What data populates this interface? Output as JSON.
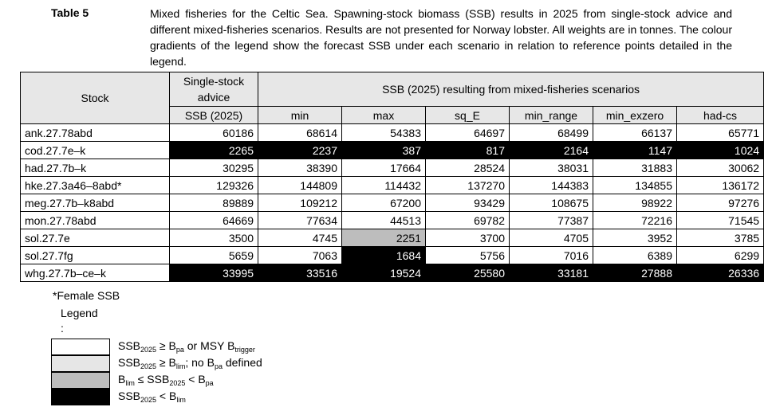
{
  "caption": {
    "label": "Table 5",
    "text": "Mixed fisheries for the Celtic Sea. Spawning-stock biomass (SSB) results in 2025 from single-stock advice and different mixed-fisheries scenarios. Results are not presented for Norway lobster. All weights are in tonnes. The colour gradients of the legend show the forecast SSB under each scenario in relation to reference points detailed in the legend."
  },
  "table": {
    "header": {
      "stock": "Stock",
      "single_stock_advice": "Single-stock advice",
      "scenarios": "SSB (2025) resulting from mixed-fisheries scenarios"
    },
    "columns": [
      "SSB (2025)",
      "min",
      "max",
      "sq_E",
      "min_range",
      "min_exzero",
      "had-cs"
    ],
    "rows": [
      {
        "stock": "ank.27.78abd",
        "values": [
          "60186",
          "68614",
          "54383",
          "64697",
          "68499",
          "66137",
          "65771"
        ],
        "shading": [
          "white",
          "white",
          "white",
          "white",
          "white",
          "white",
          "white"
        ]
      },
      {
        "stock": "cod.27.7e–k",
        "values": [
          "2265",
          "2237",
          "387",
          "817",
          "2164",
          "1147",
          "1024"
        ],
        "shading": [
          "black",
          "black",
          "black",
          "black",
          "black",
          "black",
          "black"
        ]
      },
      {
        "stock": "had.27.7b–k",
        "values": [
          "30295",
          "38390",
          "17664",
          "28524",
          "38031",
          "31883",
          "30062"
        ],
        "shading": [
          "white",
          "white",
          "white",
          "white",
          "white",
          "white",
          "white"
        ]
      },
      {
        "stock": "hke.27.3a46–8abd*",
        "values": [
          "129326",
          "144809",
          "114432",
          "137270",
          "144383",
          "134855",
          "136172"
        ],
        "shading": [
          "white",
          "white",
          "white",
          "white",
          "white",
          "white",
          "white"
        ]
      },
      {
        "stock": "meg.27.7b–k8abd",
        "values": [
          "89889",
          "109212",
          "67200",
          "93429",
          "108675",
          "98922",
          "97276"
        ],
        "shading": [
          "white",
          "white",
          "white",
          "white",
          "white",
          "white",
          "white"
        ]
      },
      {
        "stock": "mon.27.78abd",
        "values": [
          "64669",
          "77634",
          "44513",
          "69782",
          "77387",
          "72216",
          "71545"
        ],
        "shading": [
          "white",
          "white",
          "white",
          "white",
          "white",
          "white",
          "white"
        ]
      },
      {
        "stock": "sol.27.7e",
        "values": [
          "3500",
          "4745",
          "2251",
          "3700",
          "4705",
          "3952",
          "3785"
        ],
        "shading": [
          "white",
          "white",
          "grey",
          "white",
          "white",
          "white",
          "white"
        ]
      },
      {
        "stock": "sol.27.7fg",
        "values": [
          "5659",
          "7063",
          "1684",
          "5756",
          "7016",
          "6389",
          "6299"
        ],
        "shading": [
          "white",
          "white",
          "black",
          "white",
          "white",
          "white",
          "white"
        ]
      },
      {
        "stock": "whg.27.7b–ce–k",
        "values": [
          "33995",
          "33516",
          "19524",
          "25580",
          "33181",
          "27888",
          "26336"
        ],
        "shading": [
          "black",
          "black",
          "black",
          "black",
          "black",
          "black",
          "black"
        ]
      }
    ]
  },
  "footnote": "*Female SSB",
  "legend": {
    "title": "Legend",
    "colon": ":",
    "items": [
      {
        "shade": "#ffffff",
        "text": "SSB2025 ≥ Bpa or MSY Btrigger"
      },
      {
        "shade": "#e6e6e6",
        "text": "SSB2025 ≥ Blim; no Bpa defined"
      },
      {
        "shade": "#bdbdbd",
        "text": "Blim ≤ SSB2025 < Bpa"
      },
      {
        "shade": "#000000",
        "text": "SSB2025 < Blim"
      }
    ]
  }
}
